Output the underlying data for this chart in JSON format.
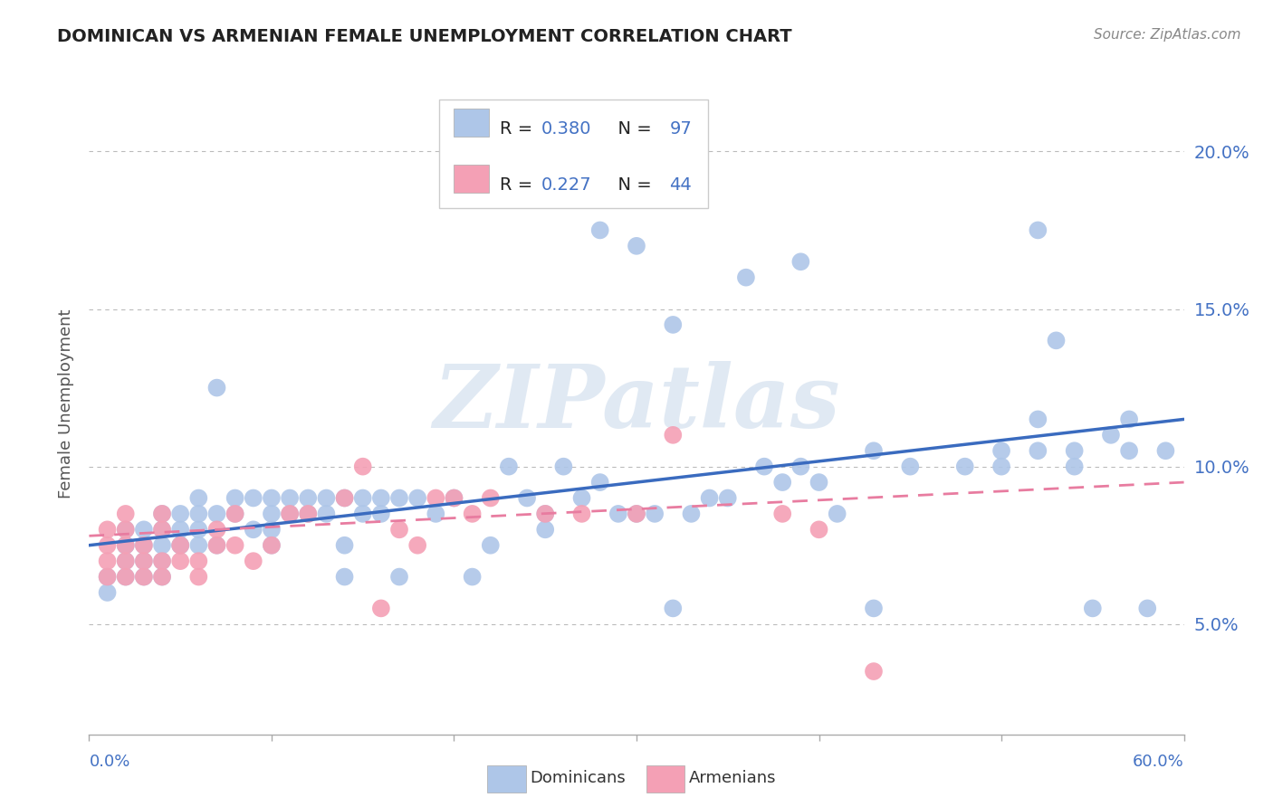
{
  "title": "DOMINICAN VS ARMENIAN FEMALE UNEMPLOYMENT CORRELATION CHART",
  "source_text": "Source: ZipAtlas.com",
  "ylabel": "Female Unemployment",
  "right_yticks": [
    "5.0%",
    "10.0%",
    "15.0%",
    "20.0%"
  ],
  "right_ytick_vals": [
    0.05,
    0.1,
    0.15,
    0.2
  ],
  "xlim": [
    0.0,
    0.6
  ],
  "ylim": [
    0.015,
    0.225
  ],
  "dominican_R": 0.38,
  "dominican_N": 97,
  "armenian_R": 0.227,
  "armenian_N": 44,
  "dominican_color": "#aec6e8",
  "armenian_color": "#f4a0b5",
  "dominican_line_color": "#3a6bbf",
  "armenian_line_color": "#e87ca0",
  "legend_label_dom": "Dominicans",
  "legend_label_arm": "Armenians",
  "watermark": "ZIPatlas",
  "background_color": "#ffffff",
  "grid_color": "#bbbbbb",
  "title_color": "#222222",
  "axis_label_color": "#4472c4",
  "stat_label_color": "#222222",
  "dom_line_start_x": 0.0,
  "dom_line_start_y": 0.075,
  "dom_line_end_x": 0.6,
  "dom_line_end_y": 0.115,
  "arm_line_start_x": 0.0,
  "arm_line_start_y": 0.078,
  "arm_line_end_x": 0.6,
  "arm_line_end_y": 0.095,
  "dom_x": [
    0.01,
    0.01,
    0.02,
    0.02,
    0.02,
    0.02,
    0.02,
    0.03,
    0.03,
    0.03,
    0.03,
    0.04,
    0.04,
    0.04,
    0.04,
    0.04,
    0.05,
    0.05,
    0.05,
    0.05,
    0.06,
    0.06,
    0.06,
    0.06,
    0.07,
    0.07,
    0.07,
    0.08,
    0.08,
    0.09,
    0.09,
    0.1,
    0.1,
    0.1,
    0.1,
    0.11,
    0.11,
    0.12,
    0.12,
    0.13,
    0.13,
    0.14,
    0.14,
    0.14,
    0.15,
    0.15,
    0.16,
    0.16,
    0.17,
    0.17,
    0.18,
    0.19,
    0.2,
    0.21,
    0.22,
    0.23,
    0.24,
    0.25,
    0.25,
    0.26,
    0.27,
    0.28,
    0.29,
    0.3,
    0.31,
    0.32,
    0.33,
    0.34,
    0.35,
    0.37,
    0.38,
    0.39,
    0.4,
    0.41,
    0.43,
    0.45,
    0.48,
    0.5,
    0.52,
    0.54,
    0.55,
    0.56,
    0.57,
    0.58,
    0.32,
    0.52,
    0.53,
    0.28,
    0.3,
    0.36,
    0.39,
    0.43,
    0.5,
    0.52,
    0.54,
    0.57,
    0.59
  ],
  "dom_y": [
    0.065,
    0.06,
    0.065,
    0.07,
    0.075,
    0.08,
    0.075,
    0.065,
    0.07,
    0.08,
    0.075,
    0.07,
    0.065,
    0.075,
    0.08,
    0.085,
    0.075,
    0.08,
    0.085,
    0.075,
    0.075,
    0.08,
    0.085,
    0.09,
    0.075,
    0.085,
    0.125,
    0.09,
    0.085,
    0.08,
    0.09,
    0.075,
    0.08,
    0.085,
    0.09,
    0.085,
    0.09,
    0.085,
    0.09,
    0.085,
    0.09,
    0.09,
    0.075,
    0.065,
    0.085,
    0.09,
    0.085,
    0.09,
    0.09,
    0.065,
    0.09,
    0.085,
    0.09,
    0.065,
    0.075,
    0.1,
    0.09,
    0.085,
    0.08,
    0.1,
    0.09,
    0.095,
    0.085,
    0.085,
    0.085,
    0.055,
    0.085,
    0.09,
    0.09,
    0.1,
    0.095,
    0.1,
    0.095,
    0.085,
    0.055,
    0.1,
    0.1,
    0.105,
    0.105,
    0.1,
    0.055,
    0.11,
    0.115,
    0.055,
    0.145,
    0.175,
    0.14,
    0.175,
    0.17,
    0.16,
    0.165,
    0.105,
    0.1,
    0.115,
    0.105,
    0.105,
    0.105
  ],
  "arm_x": [
    0.01,
    0.01,
    0.01,
    0.01,
    0.02,
    0.02,
    0.02,
    0.02,
    0.02,
    0.03,
    0.03,
    0.03,
    0.04,
    0.04,
    0.04,
    0.04,
    0.05,
    0.05,
    0.06,
    0.06,
    0.07,
    0.07,
    0.08,
    0.08,
    0.09,
    0.1,
    0.11,
    0.12,
    0.14,
    0.15,
    0.16,
    0.17,
    0.18,
    0.19,
    0.2,
    0.21,
    0.22,
    0.25,
    0.27,
    0.3,
    0.32,
    0.38,
    0.4,
    0.43
  ],
  "arm_y": [
    0.065,
    0.07,
    0.075,
    0.08,
    0.065,
    0.07,
    0.075,
    0.08,
    0.085,
    0.065,
    0.07,
    0.075,
    0.065,
    0.07,
    0.08,
    0.085,
    0.07,
    0.075,
    0.065,
    0.07,
    0.075,
    0.08,
    0.075,
    0.085,
    0.07,
    0.075,
    0.085,
    0.085,
    0.09,
    0.1,
    0.055,
    0.08,
    0.075,
    0.09,
    0.09,
    0.085,
    0.09,
    0.085,
    0.085,
    0.085,
    0.11,
    0.085,
    0.08,
    0.035
  ]
}
